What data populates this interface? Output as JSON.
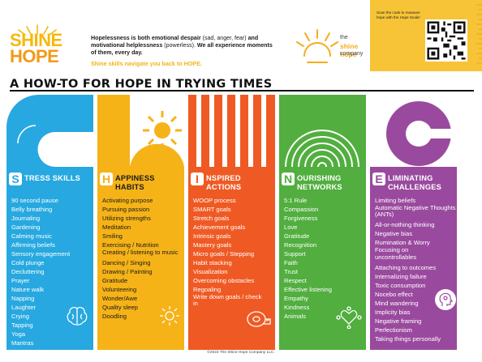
{
  "header": {
    "logo_line1": "SHINE",
    "logo_line2": "HOPE",
    "intro_bold1": "Hopelessness is both emotional despair",
    "intro_normal1": " (sad, anger, fear) ",
    "intro_bold2": "and motivational helplessness",
    "intro_normal2": " (powerless). ",
    "intro_bold3": "We all experience moments of them, every day.",
    "tagline": "Shine skills navigate you back to HOPE.",
    "company_the": "the",
    "company_name": "shine hope",
    "company_word": "company",
    "qr_text": "Scan the code to measure hope with the Hope Scale!"
  },
  "title": "A HOW-TO FOR HOPE IN TRYING TIMES",
  "columns": [
    {
      "letter": "S",
      "heading": "TRESS SKILLS",
      "items": [
        "90 second pause",
        "Belly breathing",
        "Journaling",
        "Gardening",
        "Calming music",
        "Affirming beliefs",
        "Sensory engagement",
        "Cold plunge",
        "Decluttering",
        "Prayer",
        "Nature walk",
        "Napping",
        "Laughter",
        "Crying",
        "Tapping",
        "Yoga",
        "Mantras"
      ]
    },
    {
      "letter": "H",
      "heading": "APPINESS HABITS",
      "items": [
        "Activating purpose",
        "Pursuing passion",
        "Utilizing strengths",
        "Meditation",
        "Smiling",
        "Exercising /  Nutrition",
        "Creating / listening to music",
        "Dancing /  Singing",
        "Drawing /  Painting",
        "Gratitude",
        "Volunteering",
        "Wonder/Awe",
        "Quality sleep",
        "Doodling"
      ]
    },
    {
      "letter": "I",
      "heading": "NSPIRED ACTIONS",
      "items": [
        "WOOP process",
        "SMART goals",
        "Stretch goals",
        "Achievement goals",
        "Intrinsic goals",
        "Mastery goals",
        "Micro goals / Stepping",
        "Habit stacking",
        "Visualization",
        "Overcoming obstacles",
        "Regoaling",
        "Write down goals / check in"
      ]
    },
    {
      "letter": "N",
      "heading": "OURISHING NETWORKS",
      "items": [
        "5:1 Rule",
        "Compassion",
        "Forgiveness",
        "Love",
        "Gratitude",
        "Recognition",
        "Support",
        "Faith",
        "Trust",
        "Respect",
        "Effective listening",
        "Empathy",
        "Kindness",
        "Animals"
      ]
    },
    {
      "letter": "E",
      "heading": "LIMINATING CHALLENGES",
      "items": [
        "Limiting beliefs",
        "Automatic Negative Thoughts (ANTs)",
        "All-or-nothing thinking",
        "Negative bias",
        "Rumination & Worry",
        "Focusing on uncontrollables",
        "Attaching to outcomes",
        "Internalizing failure",
        "Toxic consumption",
        "Nocebo effect",
        "Mind wandering",
        "Implicity bias",
        "Negative framing",
        "Perfectionism",
        "Taking things personally"
      ]
    }
  ],
  "footer": "©2023 The Shine Hope Company LLC.",
  "colors": {
    "blue": "#27a8e0",
    "yellow": "#f5b318",
    "orange": "#ef5a24",
    "green": "#52ae3f",
    "purple": "#9a4a9e"
  }
}
